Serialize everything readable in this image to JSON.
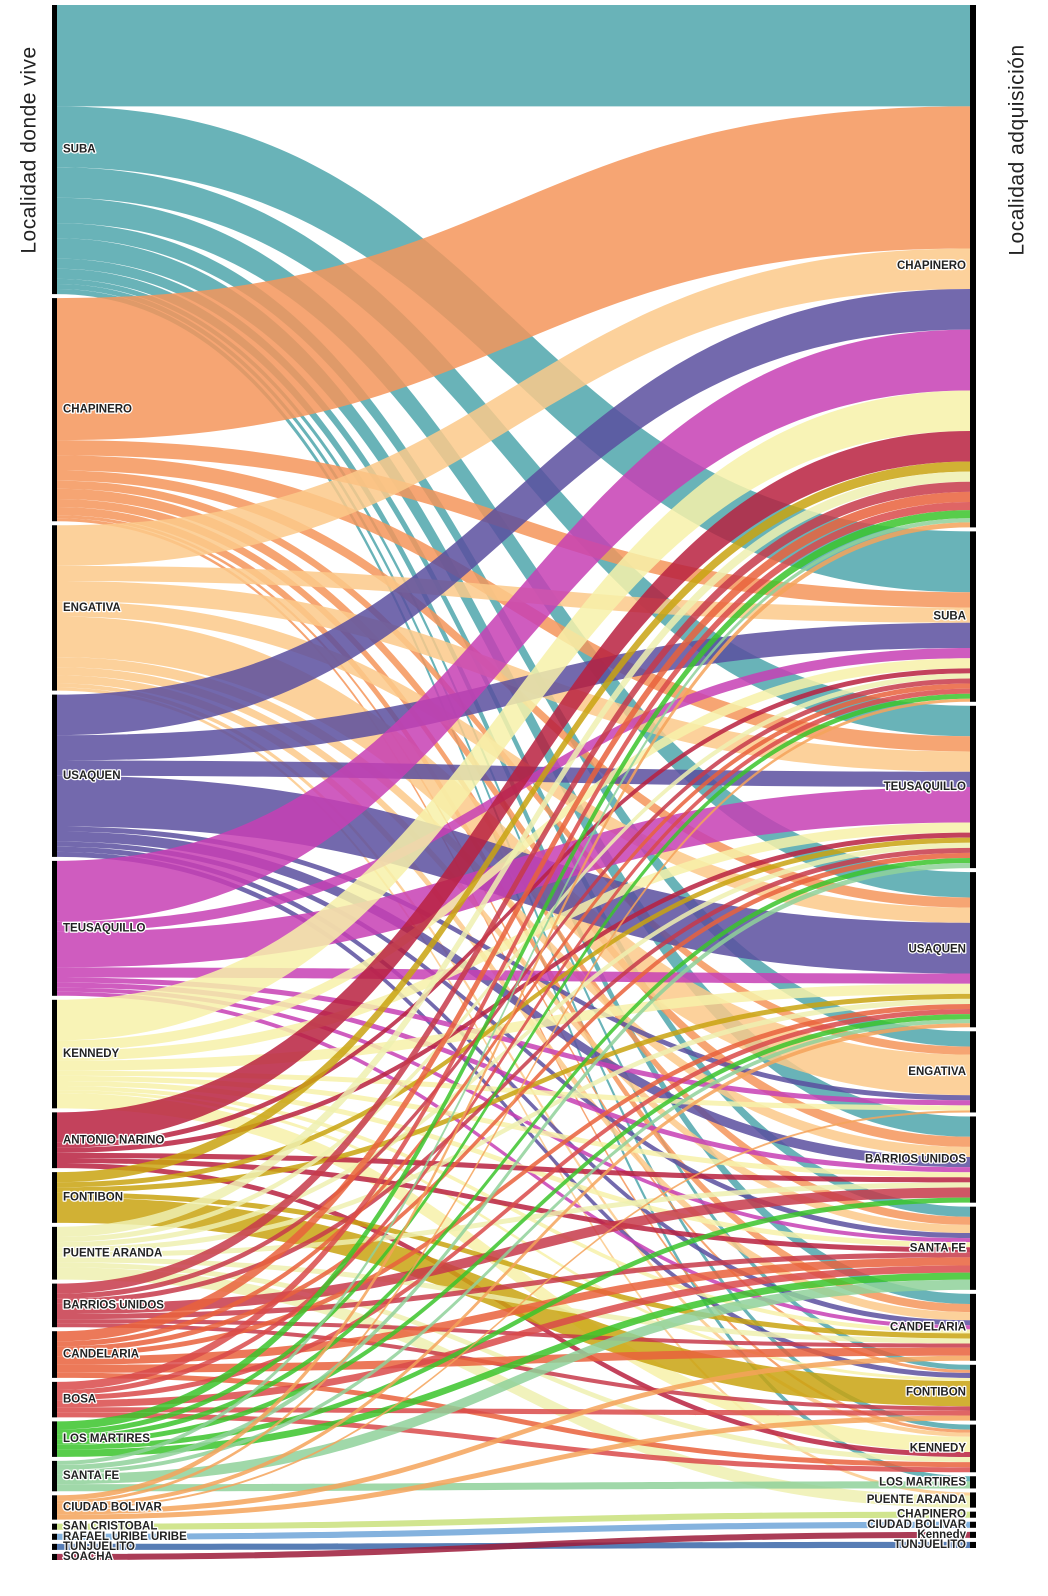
{
  "chart_data": {
    "type": "sankey",
    "left_title": "Localidad donde vive",
    "right_title": "Localidad adquisición",
    "sources": [
      {
        "name": "SUBA",
        "color": "#4fa6ac"
      },
      {
        "name": "CHAPINERO",
        "color": "#f4955a"
      },
      {
        "name": "ENGATIVA",
        "color": "#fcc98a"
      },
      {
        "name": "USAQUEN",
        "color": "#5b4f9f"
      },
      {
        "name": "TEUSAQUILLO",
        "color": "#c73fb4"
      },
      {
        "name": "KENNEDY",
        "color": "#f7f1a9"
      },
      {
        "name": "ANTONIO NARINO",
        "color": "#b8213f"
      },
      {
        "name": "FONTIBON",
        "color": "#c9a310"
      },
      {
        "name": "PUENTE ARANDA",
        "color": "#eef0b0"
      },
      {
        "name": "BARRIOS UNIDOS",
        "color": "#c7394a"
      },
      {
        "name": "CANDELARIA",
        "color": "#e9623c"
      },
      {
        "name": "BOSA",
        "color": "#d94a4a"
      },
      {
        "name": "LOS MARTIRES",
        "color": "#3bc42c"
      },
      {
        "name": "SANTA FE",
        "color": "#8fd19a"
      },
      {
        "name": "CIUDAD BOLIVAR",
        "color": "#f4a35a"
      },
      {
        "name": "SAN CRISTOBAL",
        "color": "#c9e07b"
      },
      {
        "name": "RAFAEL URIBE URIBE",
        "color": "#6fa5d8"
      },
      {
        "name": "TUNJUELITO",
        "color": "#3a66a8"
      },
      {
        "name": "SOACHA",
        "color": "#9c1b3a"
      }
    ],
    "targets": [
      "CHAPINERO",
      "SUBA",
      "TEUSAQUILLO",
      "USAQUEN",
      "ENGATIVA",
      "BARRIOS UNIDOS",
      "SANTA FE",
      "CANDELARIA",
      "FONTIBON",
      "KENNEDY",
      "LOS MARTIRES",
      "PUENTE ARANDA",
      "CHAPINERO",
      "CIUDAD BOLIVAR",
      "Kennedy",
      "TUNJUELITO"
    ],
    "flows": [
      [
        0,
        0,
        100
      ],
      [
        0,
        1,
        60
      ],
      [
        0,
        2,
        30
      ],
      [
        0,
        3,
        25
      ],
      [
        0,
        4,
        15
      ],
      [
        0,
        5,
        20
      ],
      [
        0,
        6,
        10
      ],
      [
        0,
        7,
        10
      ],
      [
        0,
        8,
        5
      ],
      [
        0,
        9,
        5
      ],
      [
        0,
        10,
        5
      ],
      [
        1,
        0,
        140
      ],
      [
        1,
        1,
        15
      ],
      [
        1,
        2,
        15
      ],
      [
        1,
        3,
        10
      ],
      [
        1,
        4,
        8
      ],
      [
        1,
        5,
        10
      ],
      [
        1,
        6,
        8
      ],
      [
        1,
        7,
        8
      ],
      [
        1,
        8,
        3
      ],
      [
        1,
        9,
        3
      ],
      [
        2,
        0,
        40
      ],
      [
        2,
        1,
        15
      ],
      [
        2,
        2,
        20
      ],
      [
        2,
        3,
        15
      ],
      [
        2,
        4,
        40
      ],
      [
        2,
        5,
        10
      ],
      [
        2,
        6,
        8
      ],
      [
        2,
        7,
        8
      ],
      [
        2,
        9,
        4
      ],
      [
        2,
        11,
        3
      ],
      [
        3,
        0,
        40
      ],
      [
        3,
        1,
        25
      ],
      [
        3,
        2,
        15
      ],
      [
        3,
        3,
        50
      ],
      [
        3,
        4,
        5
      ],
      [
        3,
        5,
        10
      ],
      [
        3,
        6,
        5
      ],
      [
        3,
        7,
        5
      ],
      [
        3,
        8,
        5
      ],
      [
        4,
        0,
        60
      ],
      [
        4,
        1,
        10
      ],
      [
        4,
        2,
        35
      ],
      [
        4,
        3,
        10
      ],
      [
        4,
        4,
        5
      ],
      [
        4,
        5,
        5
      ],
      [
        4,
        6,
        4
      ],
      [
        4,
        7,
        4
      ],
      [
        5,
        0,
        40
      ],
      [
        5,
        1,
        10
      ],
      [
        5,
        2,
        10
      ],
      [
        5,
        3,
        10
      ],
      [
        5,
        4,
        5
      ],
      [
        5,
        5,
        5
      ],
      [
        5,
        6,
        5
      ],
      [
        5,
        7,
        4
      ],
      [
        5,
        8,
        3
      ],
      [
        5,
        9,
        15
      ],
      [
        6,
        0,
        30
      ],
      [
        6,
        1,
        5
      ],
      [
        6,
        2,
        5
      ],
      [
        6,
        5,
        5
      ],
      [
        6,
        6,
        5
      ],
      [
        6,
        9,
        5
      ],
      [
        7,
        0,
        10
      ],
      [
        7,
        2,
        5
      ],
      [
        7,
        3,
        5
      ],
      [
        7,
        7,
        5
      ],
      [
        7,
        8,
        25
      ],
      [
        8,
        0,
        10
      ],
      [
        8,
        1,
        5
      ],
      [
        8,
        2,
        5
      ],
      [
        8,
        3,
        5
      ],
      [
        8,
        5,
        5
      ],
      [
        8,
        7,
        5
      ],
      [
        8,
        9,
        5
      ],
      [
        8,
        11,
        12
      ],
      [
        9,
        0,
        10
      ],
      [
        9,
        1,
        5
      ],
      [
        9,
        2,
        5
      ],
      [
        9,
        5,
        10
      ],
      [
        9,
        6,
        5
      ],
      [
        9,
        7,
        4
      ],
      [
        9,
        8,
        4
      ],
      [
        10,
        0,
        10
      ],
      [
        10,
        1,
        5
      ],
      [
        10,
        2,
        5
      ],
      [
        10,
        3,
        5
      ],
      [
        10,
        6,
        8
      ],
      [
        10,
        7,
        8
      ],
      [
        10,
        9,
        5
      ],
      [
        11,
        0,
        8
      ],
      [
        11,
        1,
        5
      ],
      [
        11,
        3,
        5
      ],
      [
        11,
        6,
        7
      ],
      [
        11,
        8,
        5
      ],
      [
        11,
        9,
        5
      ],
      [
        12,
        0,
        8
      ],
      [
        12,
        1,
        5
      ],
      [
        12,
        2,
        5
      ],
      [
        12,
        3,
        5
      ],
      [
        12,
        5,
        5
      ],
      [
        12,
        6,
        7
      ],
      [
        13,
        0,
        4
      ],
      [
        13,
        2,
        5
      ],
      [
        13,
        3,
        4
      ],
      [
        13,
        6,
        10
      ],
      [
        13,
        10,
        7
      ],
      [
        14,
        0,
        5
      ],
      [
        14,
        1,
        3
      ],
      [
        14,
        3,
        4
      ],
      [
        14,
        4,
        2
      ],
      [
        14,
        7,
        5
      ],
      [
        14,
        8,
        5
      ],
      [
        15,
        12,
        6
      ],
      [
        16,
        13,
        6
      ],
      [
        17,
        15,
        6
      ],
      [
        18,
        14,
        6
      ]
    ]
  }
}
